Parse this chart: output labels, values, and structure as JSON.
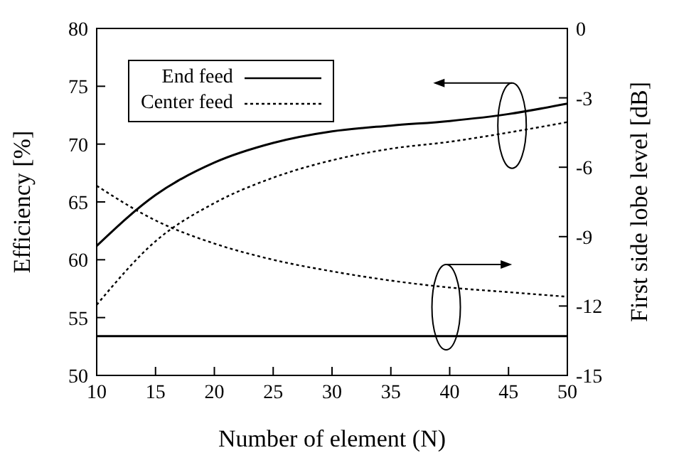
{
  "chart_data": {
    "type": "line",
    "xlabel": "Number of element (N)",
    "ylabel": "Efficiency [%]",
    "y2label": "First side lobe level  [dB]",
    "x": [
      10,
      15,
      20,
      25,
      30,
      35,
      40,
      45,
      50
    ],
    "series": [
      {
        "name": "End feed",
        "color": "#000000",
        "line_style": "solid",
        "values": [
          61.2,
          65.6,
          68.4,
          70.1,
          71.1,
          71.6,
          72.0,
          72.6,
          73.5
        ]
      },
      {
        "name": "Center feed",
        "color": "#000000",
        "line_style": "dotted",
        "values": [
          56.1,
          61.6,
          64.9,
          67.1,
          68.6,
          69.6,
          70.2,
          71.0,
          71.9
        ]
      },
      {
        "color": "#000000",
        "line_style": "solid",
        "axis": "y2",
        "values": [
          -13.3,
          -13.3,
          -13.3,
          -13.3,
          -13.3,
          -13.3,
          -13.3,
          -13.3,
          -13.3
        ]
      },
      {
        "color": "#000000",
        "line_style": "dotted",
        "axis": "y2",
        "values": [
          -6.8,
          -8.3,
          -9.3,
          -10.0,
          -10.5,
          -10.9,
          -11.2,
          -11.4,
          -11.6
        ]
      }
    ],
    "xlim": [
      10,
      50
    ],
    "xticks": [
      10,
      15,
      20,
      25,
      30,
      35,
      40,
      45,
      50
    ],
    "ylim": [
      50,
      80
    ],
    "yticks": [
      50,
      55,
      60,
      65,
      70,
      75,
      80
    ],
    "y2lim": [
      -15,
      0
    ],
    "y2ticks": [
      -15,
      -12,
      -9,
      -6,
      -3,
      0
    ],
    "legend": "top left",
    "marker": "none"
  }
}
